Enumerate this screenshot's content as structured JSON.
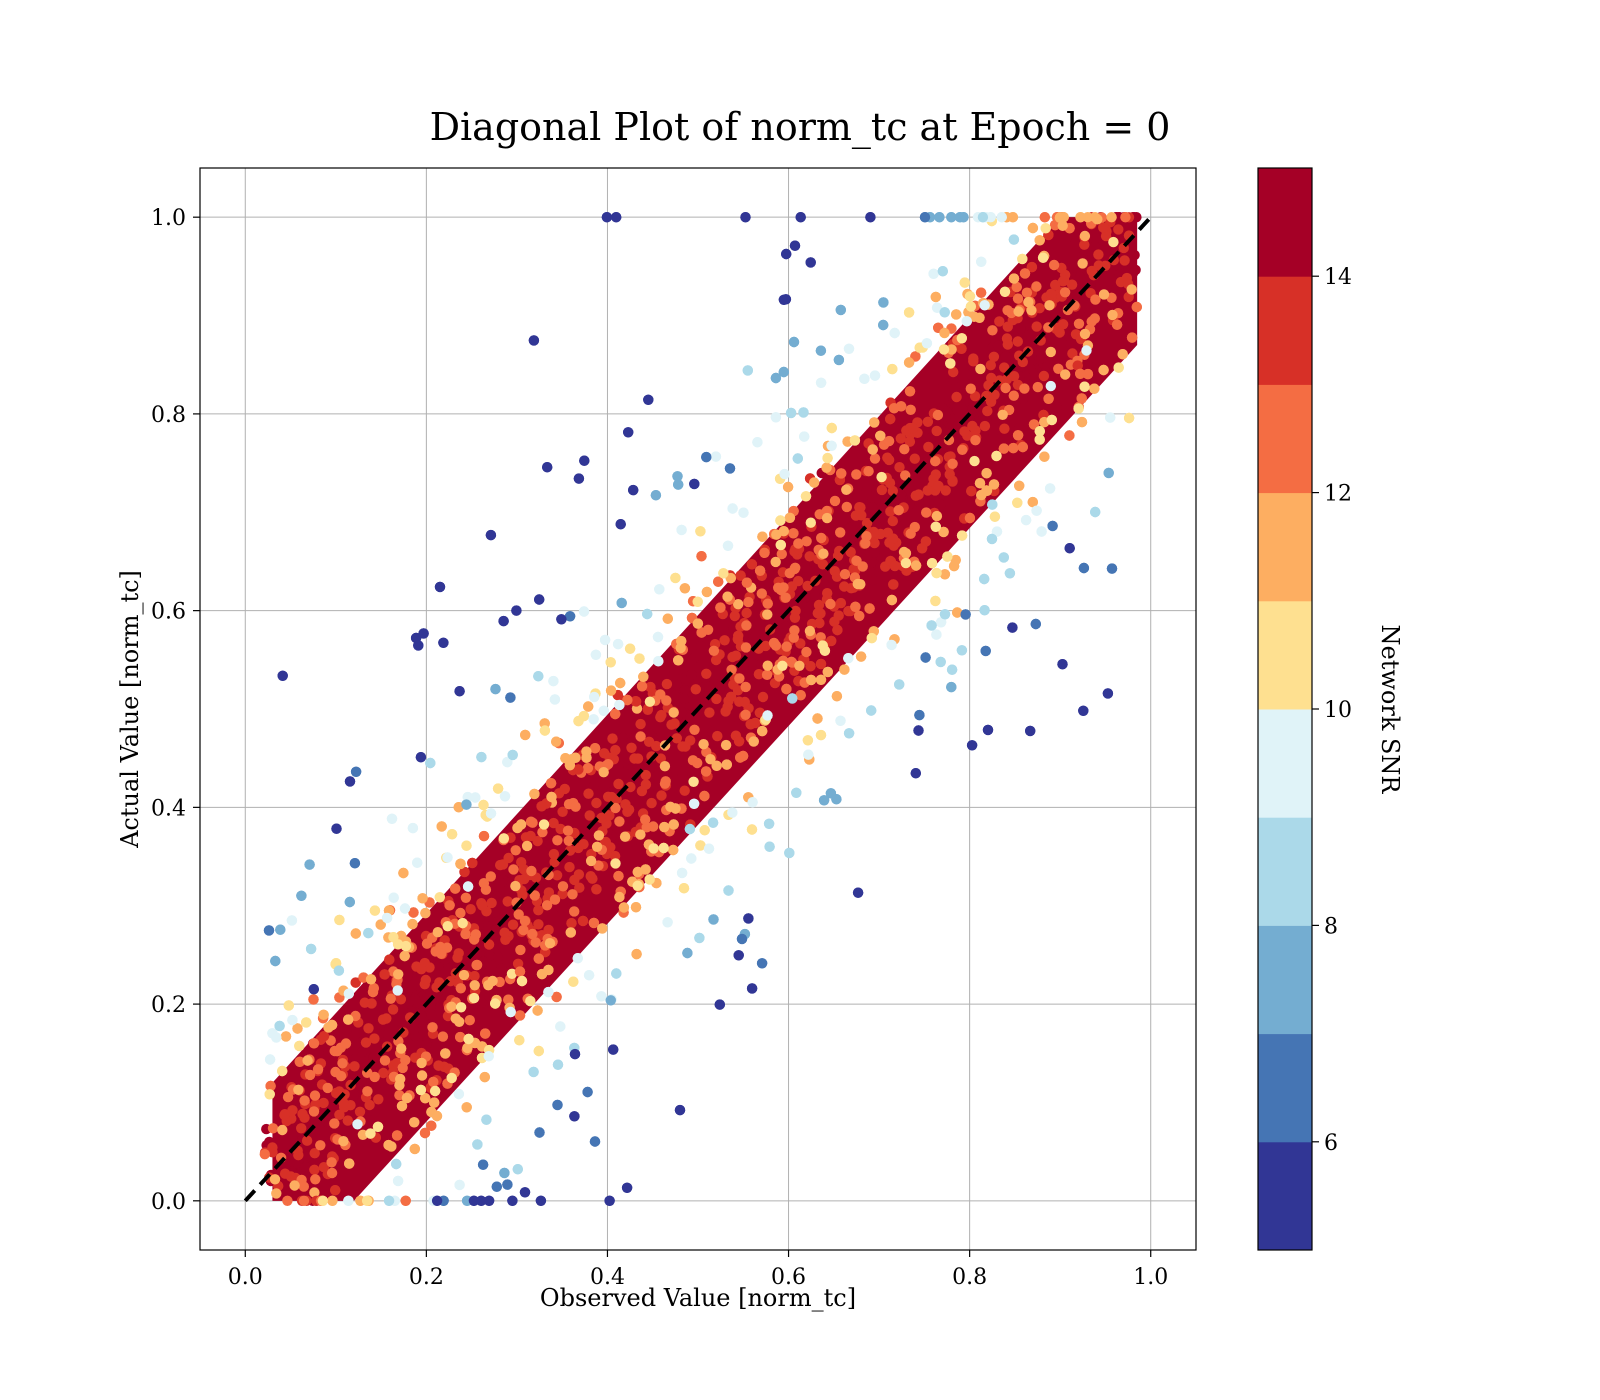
{
  "chart_data": {
    "type": "scatter",
    "title": "Diagonal Plot of norm_tc at Epoch = 0",
    "xlabel": "Observed Value [norm_tc]",
    "ylabel": "Actual Value [norm_tc]",
    "xlim": [
      -0.05,
      1.05
    ],
    "ylim": [
      -0.05,
      1.05
    ],
    "xticks": [
      "0.0",
      "0.2",
      "0.4",
      "0.6",
      "0.8",
      "1.0"
    ],
    "yticks": [
      "0.0",
      "0.2",
      "0.4",
      "0.6",
      "0.8",
      "1.0"
    ],
    "grid": true,
    "reference_line": {
      "style": "dashed",
      "color": "#000000",
      "from": [
        0,
        0
      ],
      "to": [
        1,
        1
      ]
    },
    "series_description": "Dense cloud of points along the diagonal; points near the diagonal have high Network SNR (red), outliers far from the diagonal have lower SNR (blue/yellow).",
    "colorbar": {
      "label": "Network SNR",
      "range": [
        5,
        15
      ],
      "ticks": [
        "6",
        "8",
        "10",
        "12",
        "14"
      ],
      "colors": [
        "#313695",
        "#4575b4",
        "#74add1",
        "#abd9e9",
        "#e0f3f8",
        "#fee090",
        "#fdae61",
        "#f46d43",
        "#d73027",
        "#a50026"
      ]
    }
  }
}
